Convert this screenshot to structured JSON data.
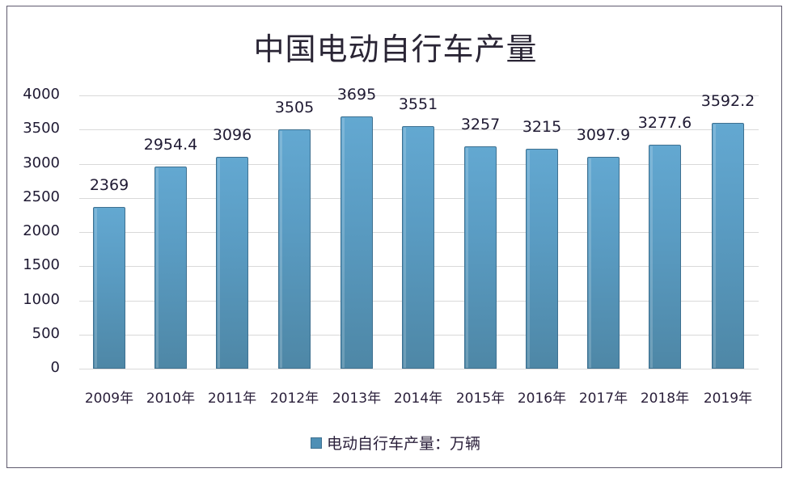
{
  "chart_data": {
    "type": "bar",
    "title": "中国电动自行车产量",
    "categories": [
      "2009年",
      "2010年",
      "2011年",
      "2012年",
      "2013年",
      "2014年",
      "2015年",
      "2016年",
      "2017年",
      "2018年",
      "2019年"
    ],
    "series": [
      {
        "name": "电动自行车产量：万辆",
        "values": [
          2369,
          2954.4,
          3096,
          3505,
          3695,
          3551,
          3257,
          3215,
          3097.9,
          3277.6,
          3592.2
        ]
      }
    ],
    "value_labels": [
      "2369",
      "2954.4",
      "3096",
      "3505",
      "3695",
      "3551",
      "3257",
      "3215",
      "3097.9",
      "3277.6",
      "3592.2"
    ],
    "xlabel": "",
    "ylabel": "",
    "ylim": [
      0,
      4000
    ],
    "yticks": [
      "4000",
      "3500",
      "3000",
      "2500",
      "2000",
      "1500",
      "1000",
      "500",
      "0"
    ],
    "grid": true,
    "legend_position": "bottom",
    "bar_color": "#5a9cc3"
  }
}
